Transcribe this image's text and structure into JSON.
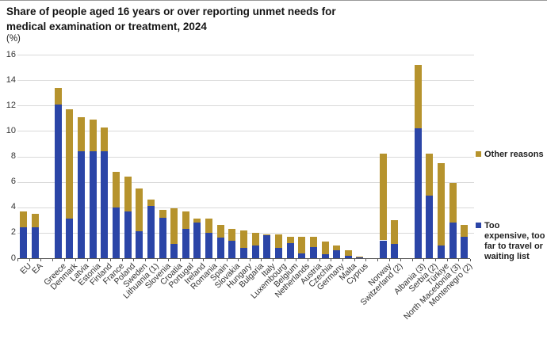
{
  "chart": {
    "title_lines": [
      "Share of people aged 16 years or over reporting unmet needs for",
      "medical examination or treatment, 2024"
    ],
    "unit_label": "(%)"
  },
  "legend": {
    "other_label": "Other reasons",
    "expensive_label": "Too\nexpensive, too\nfar to travel or\nwaiting list"
  },
  "colors": {
    "blue": "#2b45a7",
    "gold": "#b6932d",
    "gridline": "#d9d9d9",
    "axis": "#595959"
  },
  "chart_data": {
    "type": "bar",
    "stacked": true,
    "title": "Share of people aged 16 years or over reporting unmet needs for medical examination or treatment, 2024",
    "ylabel": "(%)",
    "ylim": [
      0,
      16
    ],
    "y_ticks": [
      0,
      2,
      4,
      6,
      8,
      10,
      12,
      14,
      16
    ],
    "grid": true,
    "legend_position": "right",
    "categories": [
      "EU",
      "EA",
      "Greece",
      "Denmark",
      "Latvia",
      "Estonia",
      "Finland",
      "France",
      "Poland",
      "Sweden",
      "Lithuania (1)",
      "Slovenia",
      "Croatia",
      "Portugal",
      "Ireland",
      "Romania",
      "Spain",
      "Slovakia",
      "Hungary",
      "Bulgaria",
      "Italy",
      "Luxembourg",
      "Belgium",
      "Netherlands",
      "Austria",
      "Czechia",
      "Germany",
      "Malta",
      "Cyprus",
      "Norway",
      "Switzerland (2)",
      "Albania (3)",
      "Serbia (2)",
      "Türkiye",
      "North Macedonia (3)",
      "Montenegro (2)"
    ],
    "gaps_after": [
      "EA",
      "Cyprus",
      "Switzerland (2)"
    ],
    "series": [
      {
        "name": "Too expensive, too far to travel or waiting list",
        "color": "#2b45a7",
        "values": [
          2.4,
          2.4,
          12.1,
          3.1,
          8.4,
          8.4,
          8.4,
          4.0,
          3.7,
          2.1,
          4.1,
          3.2,
          1.1,
          2.3,
          2.8,
          2.0,
          1.6,
          1.4,
          0.8,
          1.0,
          1.8,
          0.8,
          1.2,
          0.4,
          0.9,
          0.3,
          0.6,
          0.2,
          0.05,
          1.4,
          1.1,
          10.2,
          4.9,
          1.0,
          2.8,
          1.7
        ]
      },
      {
        "name": "Other reasons",
        "color": "#b6932d",
        "values": [
          1.3,
          1.1,
          1.3,
          8.6,
          2.7,
          2.5,
          1.9,
          2.8,
          2.7,
          3.4,
          0.5,
          0.6,
          2.8,
          1.4,
          0.3,
          1.1,
          1.0,
          0.9,
          1.4,
          1.0,
          0.1,
          1.1,
          0.5,
          1.3,
          0.8,
          1.0,
          0.4,
          0.4,
          0.05,
          6.8,
          1.9,
          5.0,
          3.3,
          6.5,
          3.1,
          0.9
        ]
      }
    ]
  }
}
